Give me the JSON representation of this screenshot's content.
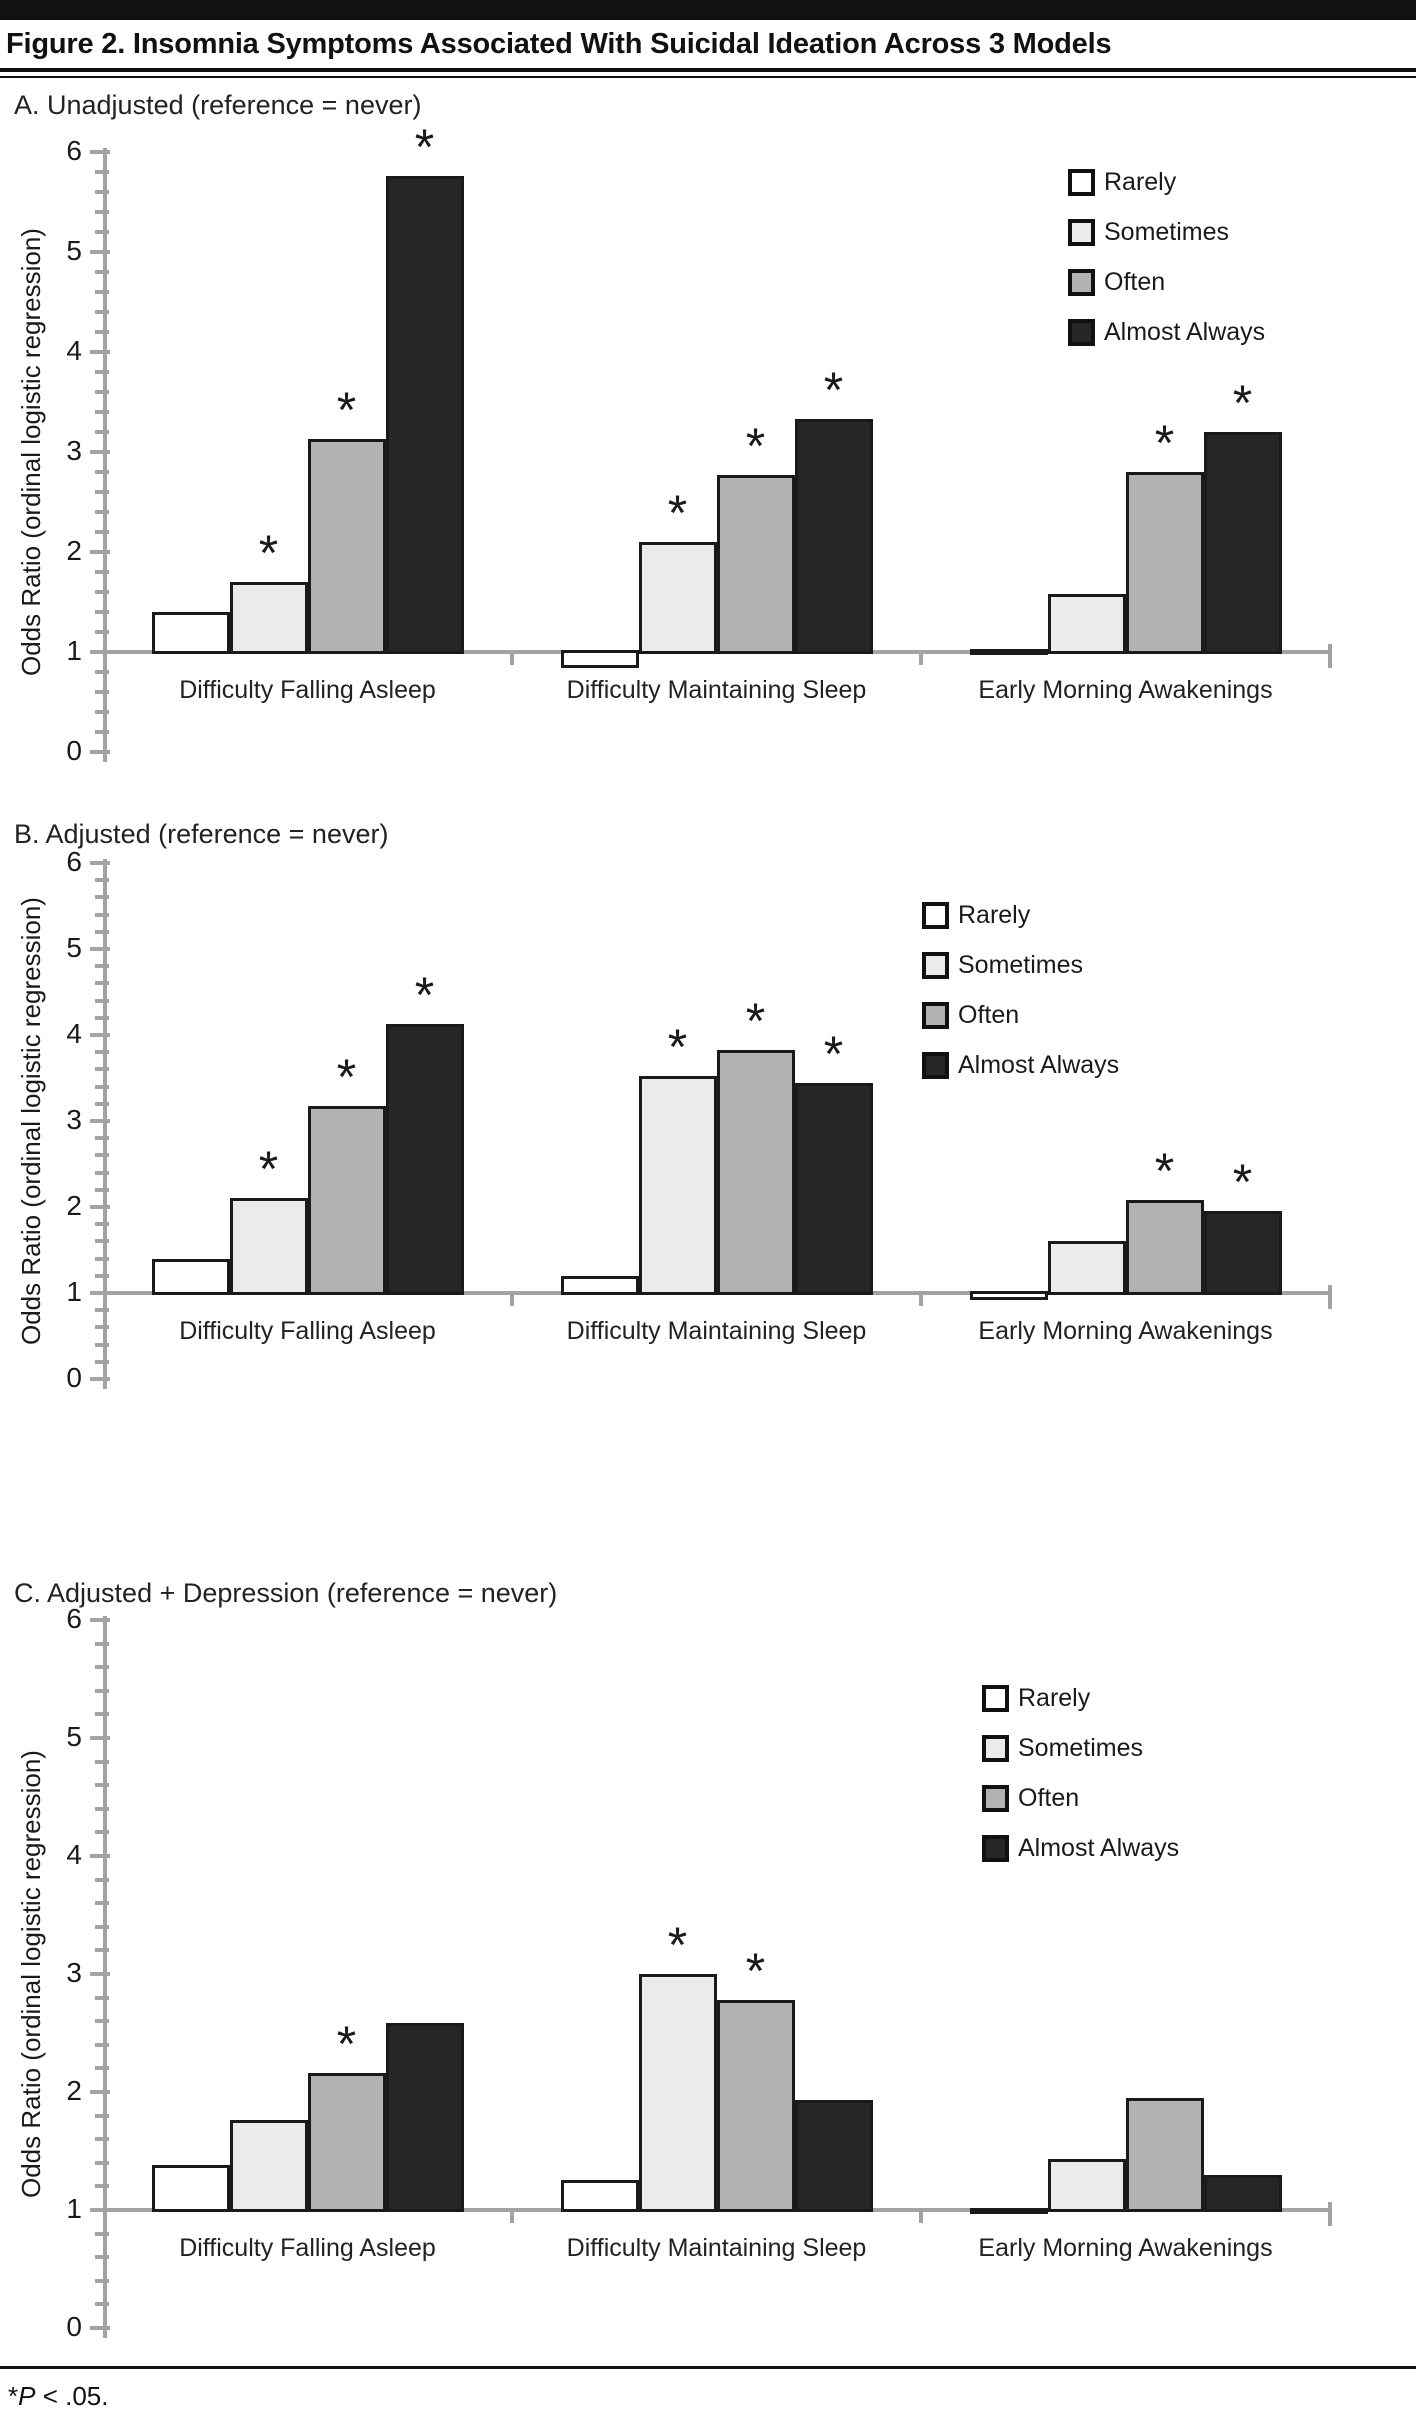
{
  "figure": {
    "title": "Figure 2. Insomnia Symptoms Associated With Suicidal Ideation Across 3 Models",
    "footnote": {
      "star": "*",
      "p": "P",
      "rest": " < .05."
    }
  },
  "legend": [
    "Rarely",
    "Sometimes",
    "Often",
    "Almost Always"
  ],
  "series_colors": {
    "Rarely": "#ffffff",
    "Sometimes": "#ebebeb",
    "Often": "#b2b2b2",
    "Almost Always": "#262626"
  },
  "axis_color": "#a3a3a3",
  "chart_data": [
    {
      "type": "bar",
      "panel_label": "A. Unadjusted (reference = never)",
      "ylabel": "Odds Ratio (ordinal logistic regression)",
      "ylim": [
        0,
        6
      ],
      "yticks": [
        0,
        1,
        2,
        3,
        4,
        5,
        6
      ],
      "baseline": 1,
      "grid": false,
      "legend_position": "upper-right",
      "sig_marker": "*",
      "categories": [
        "Difficulty Falling Asleep",
        "Difficulty Maintaining Sleep",
        "Early Morning Awakenings"
      ],
      "series": [
        {
          "name": "Rarely",
          "values": [
            1.42,
            0.82,
            1.05
          ],
          "sig": [
            false,
            false,
            false
          ]
        },
        {
          "name": "Sometimes",
          "values": [
            1.72,
            2.12,
            1.6
          ],
          "sig": [
            true,
            true,
            false
          ]
        },
        {
          "name": "Often",
          "values": [
            3.15,
            2.79,
            2.82
          ],
          "sig": [
            true,
            true,
            true
          ]
        },
        {
          "name": "Almost Always",
          "values": [
            5.78,
            3.35,
            3.22
          ],
          "sig": [
            true,
            true,
            true
          ]
        }
      ]
    },
    {
      "type": "bar",
      "panel_label": "B. Adjusted (reference = never)",
      "ylabel": "Odds Ratio (ordinal logistic regression)",
      "ylim": [
        0,
        6
      ],
      "yticks": [
        0,
        1,
        2,
        3,
        4,
        5,
        6
      ],
      "baseline": 1,
      "grid": false,
      "legend_position": "upper-right",
      "sig_marker": "*",
      "categories": [
        "Difficulty Falling Asleep",
        "Difficulty Maintaining Sleep",
        "Early Morning Awakenings"
      ],
      "series": [
        {
          "name": "Rarely",
          "values": [
            1.42,
            1.22,
            0.9
          ],
          "sig": [
            false,
            false,
            false
          ]
        },
        {
          "name": "Sometimes",
          "values": [
            2.13,
            3.55,
            1.63
          ],
          "sig": [
            true,
            true,
            false
          ]
        },
        {
          "name": "Often",
          "values": [
            3.2,
            3.85,
            2.1
          ],
          "sig": [
            true,
            true,
            true
          ]
        },
        {
          "name": "Almost Always",
          "values": [
            4.15,
            3.47,
            1.98
          ],
          "sig": [
            true,
            true,
            true
          ]
        }
      ]
    },
    {
      "type": "bar",
      "panel_label": "C. Adjusted + Depression (reference = never)",
      "ylabel": "Odds Ratio (ordinal logistic regression)",
      "ylim": [
        0,
        6
      ],
      "yticks": [
        0,
        1,
        2,
        3,
        4,
        5,
        6
      ],
      "baseline": 1,
      "grid": false,
      "legend_position": "upper-right",
      "sig_marker": "*",
      "categories": [
        "Difficulty Falling Asleep",
        "Difficulty Maintaining Sleep",
        "Early Morning Awakenings"
      ],
      "series": [
        {
          "name": "Rarely",
          "values": [
            1.4,
            1.27,
            0.97
          ],
          "sig": [
            false,
            false,
            false
          ]
        },
        {
          "name": "Sometimes",
          "values": [
            1.78,
            3.02,
            1.45
          ],
          "sig": [
            false,
            true,
            false
          ]
        },
        {
          "name": "Often",
          "values": [
            2.18,
            2.8,
            1.97
          ],
          "sig": [
            true,
            true,
            false
          ]
        },
        {
          "name": "Almost Always",
          "values": [
            2.6,
            1.95,
            1.31
          ],
          "sig": [
            false,
            false,
            false
          ]
        }
      ]
    }
  ]
}
